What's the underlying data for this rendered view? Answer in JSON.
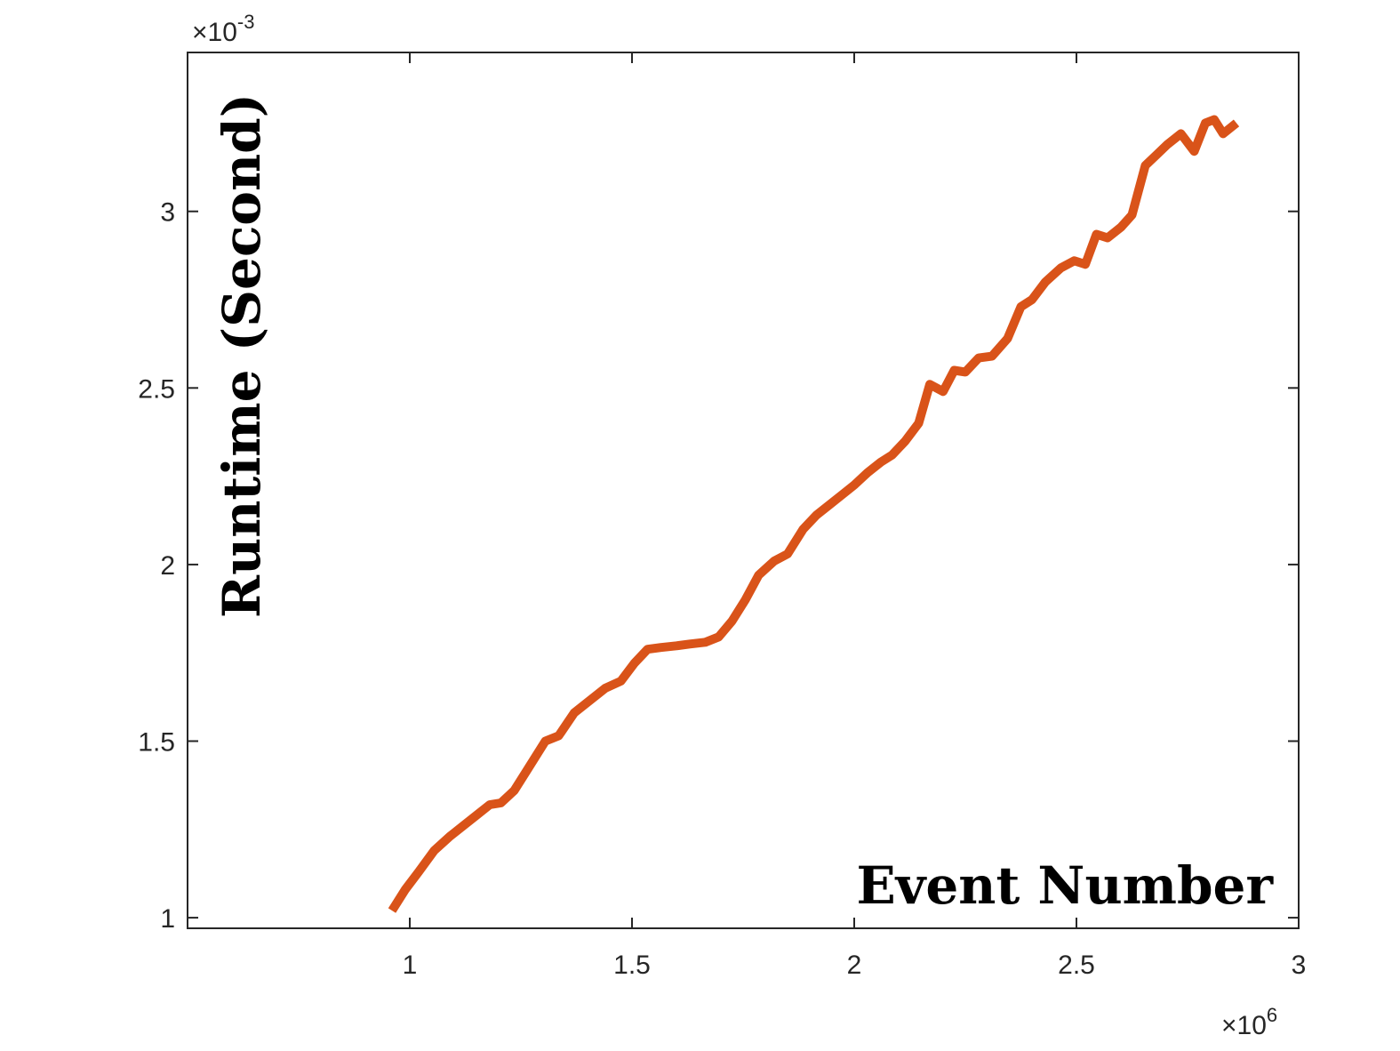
{
  "chart_data": {
    "type": "line",
    "xlabel": "Event Number",
    "ylabel": "Runtime (Second)",
    "x_multiplier": "×10",
    "x_multiplier_exp": "6",
    "y_multiplier": "×10",
    "y_multiplier_exp": "-3",
    "xlim": [
      0.5,
      3.0
    ],
    "ylim": [
      0.97,
      3.45
    ],
    "x_ticks": [
      1,
      1.5,
      2,
      2.5,
      3
    ],
    "x_tick_labels": [
      "1",
      "1.5",
      "2",
      "2.5",
      "3"
    ],
    "y_ticks": [
      1,
      1.5,
      2,
      2.5,
      3
    ],
    "y_tick_labels": [
      "1",
      "1.5",
      "2",
      "2.5",
      "3"
    ],
    "grid": false,
    "box": true,
    "line_color": "#D95319",
    "series": [
      {
        "x": [
          0.96,
          0.99,
          1.02,
          1.055,
          1.09,
          1.12,
          1.155,
          1.18,
          1.205,
          1.235,
          1.265,
          1.305,
          1.335,
          1.37,
          1.405,
          1.44,
          1.475,
          1.505,
          1.535,
          1.565,
          1.6,
          1.63,
          1.665,
          1.695,
          1.725,
          1.755,
          1.785,
          1.82,
          1.85,
          1.885,
          1.915,
          1.945,
          1.975,
          2.0,
          2.03,
          2.06,
          2.085,
          2.115,
          2.145,
          2.17,
          2.2,
          2.225,
          2.25,
          2.28,
          2.31,
          2.345,
          2.375,
          2.4,
          2.43,
          2.465,
          2.495,
          2.52,
          2.545,
          2.57,
          2.6,
          2.625,
          2.655,
          2.68,
          2.705,
          2.735,
          2.765,
          2.79,
          2.81,
          2.83,
          2.86
        ],
        "y": [
          1.02,
          1.08,
          1.13,
          1.19,
          1.23,
          1.26,
          1.295,
          1.32,
          1.325,
          1.36,
          1.42,
          1.5,
          1.515,
          1.58,
          1.615,
          1.65,
          1.67,
          1.72,
          1.76,
          1.765,
          1.77,
          1.775,
          1.78,
          1.795,
          1.84,
          1.9,
          1.97,
          2.01,
          2.03,
          2.1,
          2.14,
          2.17,
          2.2,
          2.225,
          2.26,
          2.29,
          2.31,
          2.35,
          2.4,
          2.51,
          2.49,
          2.55,
          2.545,
          2.585,
          2.59,
          2.64,
          2.73,
          2.75,
          2.8,
          2.84,
          2.86,
          2.85,
          2.935,
          2.925,
          2.955,
          2.99,
          3.13,
          3.16,
          3.19,
          3.22,
          3.17,
          3.25,
          3.26,
          3.22,
          3.25
        ]
      }
    ]
  }
}
